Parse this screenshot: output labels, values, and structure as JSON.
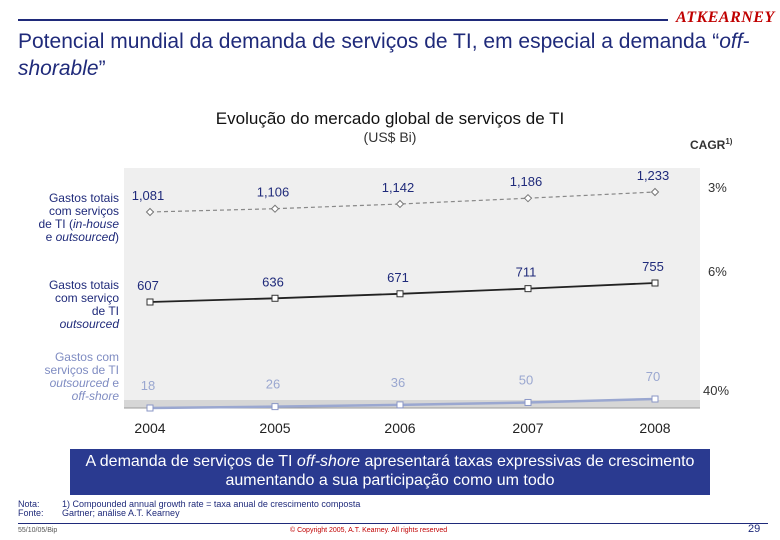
{
  "brand": "ATKEARNEY",
  "slide_title": {
    "part1": "Potencial mundial da demanda de serviços de TI, em especial a demanda “",
    "part2": "off-shorable",
    "part3": "”"
  },
  "colors": {
    "navy": "#1f2a7a",
    "banner": "#2a3a90",
    "brand_red": "#c00000",
    "series_dark": "#222222",
    "series_gray": "#888888",
    "series_light": "#9aa7d0"
  },
  "chart_data": {
    "type": "line",
    "title": "Evolução do mercado global de serviços de TI",
    "subtitle": "(US$ Bi)",
    "x": [
      "2004",
      "2005",
      "2006",
      "2007",
      "2008"
    ],
    "cagr_header": "CAGR",
    "cagr_footnote_mark": "1)",
    "series": [
      {
        "label_parts": [
          "Gastos totais",
          "com serviços",
          "de TI (",
          "in-house",
          "e ",
          "outsourced",
          ")"
        ],
        "values": [
          1081,
          1106,
          1142,
          1186,
          1233
        ],
        "value_labels": [
          "1,081",
          "1,106",
          "1,142",
          "1,186",
          "1,233"
        ],
        "cagr": "3%"
      },
      {
        "label_parts": [
          "Gastos totais",
          "com serviço",
          "de TI",
          "outsourced"
        ],
        "values": [
          607,
          636,
          671,
          711,
          755
        ],
        "value_labels": [
          "607",
          "636",
          "671",
          "711",
          "755"
        ],
        "cagr": "6%"
      },
      {
        "label_parts": [
          "Gastos com",
          "serviços de TI",
          "outsourced",
          " e",
          "off-shore"
        ],
        "values": [
          18,
          26,
          36,
          50,
          70
        ],
        "value_labels": [
          "18",
          "26",
          "36",
          "50",
          "70"
        ],
        "cagr": "40%"
      }
    ]
  },
  "banner": {
    "part1": "A demanda de serviços de TI ",
    "part2": "off-shore",
    "part3": " apresentará taxas expressivas de crescimento aumentando a sua participação como um todo"
  },
  "notes": {
    "nota_label": "Nota:",
    "nota_text": "1) Compounded annual growth rate = taxa anual de crescimento composta",
    "fonte_label": "Fonte:",
    "fonte_text": "Gartner; análise A.T. Kearney"
  },
  "footer": {
    "doc_code": "55/10/05/Bip",
    "copyright": "© Copyright 2005, A.T. Kearney. All rights reserved",
    "page_number": "29"
  }
}
